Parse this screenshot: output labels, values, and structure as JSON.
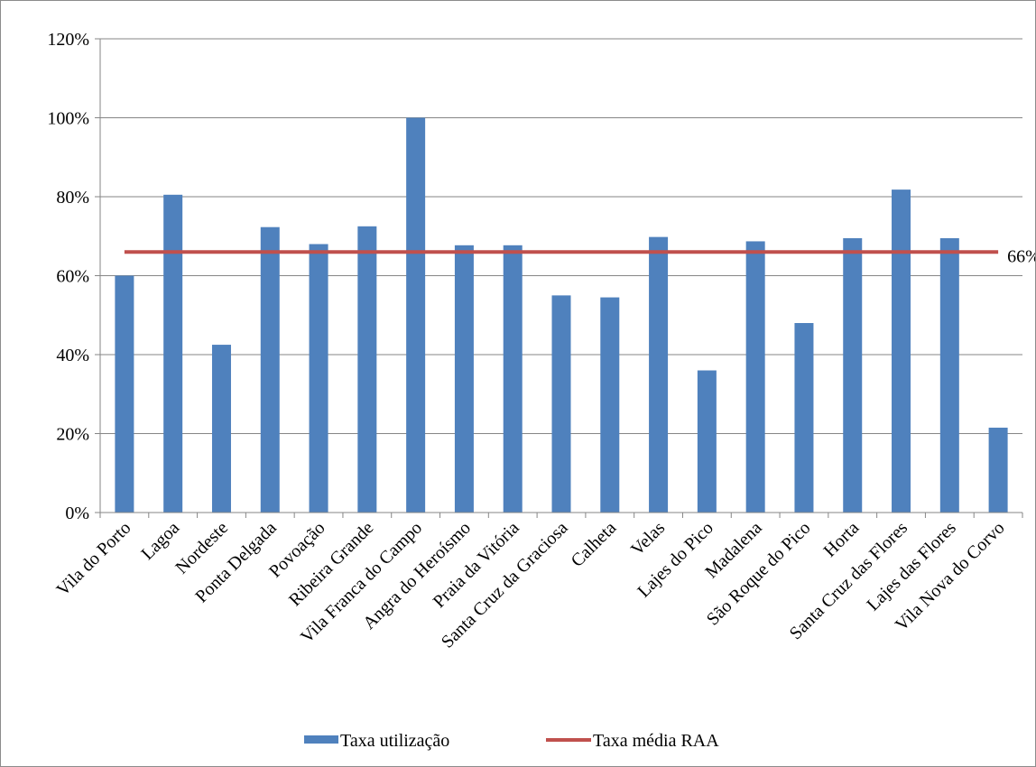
{
  "chart_data": {
    "type": "bar",
    "categories": [
      "Vila do Porto",
      "Lagoa",
      "Nordeste",
      "Ponta Delgada",
      "Povoação",
      "Ribeira Grande",
      "Vila Franca do Campo",
      "Angra do Heroísmo",
      "Praia da Vitória",
      "Santa Cruz da Graciosa",
      "Calheta",
      "Velas",
      "Lajes do Pico",
      "Madalena",
      "São Roque do Pico",
      "Horta",
      "Santa Cruz das Flores",
      "Lajes das Flores",
      "Vila Nova do Corvo"
    ],
    "series": [
      {
        "name": "Taxa utilização",
        "type": "bar",
        "color": "#4f81bd",
        "values": [
          60,
          80.5,
          42.5,
          72.3,
          68,
          72.5,
          100,
          67.7,
          67.7,
          55,
          54.5,
          69.8,
          36,
          68.7,
          48,
          69.5,
          81.8,
          69.5,
          21.5
        ]
      },
      {
        "name": "Taxa média RAA",
        "type": "line",
        "color": "#c0504d",
        "values": [
          66,
          66,
          66,
          66,
          66,
          66,
          66,
          66,
          66,
          66,
          66,
          66,
          66,
          66,
          66,
          66,
          66,
          66,
          66
        ]
      }
    ],
    "yticks": [
      "0%",
      "20%",
      "40%",
      "60%",
      "80%",
      "100%",
      "120%"
    ],
    "ylim": [
      0,
      120
    ],
    "grid": true,
    "legend_position": "bottom",
    "annotations": [
      {
        "text": "66%",
        "series": "Taxa média RAA"
      }
    ]
  }
}
